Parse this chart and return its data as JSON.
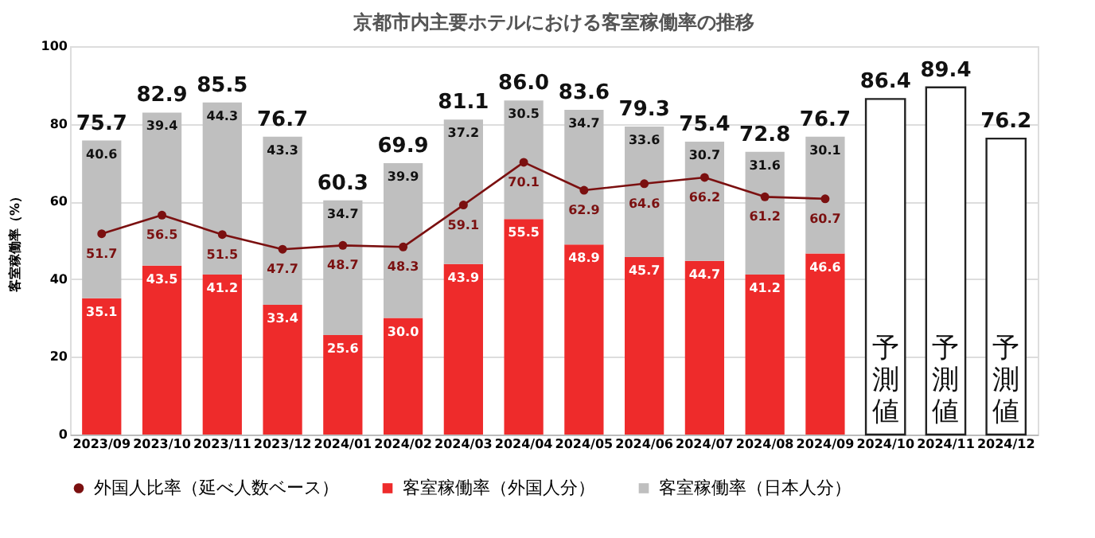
{
  "chart_data": {
    "type": "bar",
    "title": "京都市内主要ホテルにおける客室稼働率の推移",
    "ylabel": "客室稼働率（%）",
    "categories": [
      "2023/09",
      "2023/10",
      "2023/11",
      "2023/12",
      "2024/01",
      "2024/02",
      "2024/03",
      "2024/04",
      "2024/05",
      "2024/06",
      "2024/07",
      "2024/08",
      "2024/09",
      "2024/10",
      "2024/11",
      "2024/12"
    ],
    "stacked": true,
    "ylim": [
      0,
      100
    ],
    "yticks": [
      0,
      20,
      40,
      60,
      80,
      100
    ],
    "grid": "y",
    "legend": "bottom",
    "series": [
      {
        "name": "外国人比率（延べ人数ベース）",
        "type": "line",
        "marker": "circle",
        "color": "#7b1010",
        "values": [
          51.7,
          56.5,
          51.5,
          47.7,
          48.7,
          48.3,
          59.1,
          70.1,
          62.9,
          64.6,
          66.2,
          61.2,
          60.7,
          null,
          null,
          null
        ],
        "value_labels": [
          "51.7",
          "56.5",
          "51.5",
          "47.7",
          "48.7",
          "48.3",
          "59.1",
          "70.1",
          "62.9",
          "64.6",
          "66.2",
          "61.2",
          "60.7",
          null,
          null,
          null
        ]
      },
      {
        "name": "客室稼働率（外国人分）",
        "color": "#ee2b2b",
        "values": [
          35.1,
          43.5,
          41.2,
          33.4,
          25.6,
          30.0,
          43.9,
          55.5,
          48.9,
          45.7,
          44.7,
          41.2,
          46.6,
          null,
          null,
          null
        ],
        "value_labels": [
          "35.1",
          "43.5",
          "41.2",
          "33.4",
          "25.6",
          "30.0",
          "43.9",
          "55.5",
          "48.9",
          "45.7",
          "44.7",
          "41.2",
          "46.6",
          null,
          null,
          null
        ]
      },
      {
        "name": "客室稼働率（日本人分）",
        "color": "#bfbfbf",
        "values": [
          40.6,
          39.4,
          44.3,
          43.3,
          34.7,
          39.9,
          37.2,
          30.5,
          34.7,
          33.6,
          30.7,
          31.6,
          30.1,
          null,
          null,
          null
        ],
        "value_labels": [
          "40.6",
          "39.4",
          "44.3",
          "43.3",
          "34.7",
          "39.9",
          "37.2",
          "30.5",
          "34.7",
          "33.6",
          "30.7",
          "31.6",
          "30.1",
          null,
          null,
          null
        ]
      },
      {
        "color": "#ffffff",
        "values": [
          null,
          null,
          null,
          null,
          null,
          null,
          null,
          null,
          null,
          null,
          null,
          null,
          null,
          86.4,
          89.4,
          76.2
        ],
        "value_labels": [
          null,
          null,
          null,
          null,
          null,
          null,
          null,
          null,
          null,
          null,
          null,
          null,
          null,
          "86.4",
          "89.4",
          "76.2"
        ]
      }
    ],
    "totals": [
      "75.7",
      "82.9",
      "85.5",
      "76.7",
      "60.3",
      "69.9",
      "81.1",
      "86.0",
      "83.6",
      "79.3",
      "75.4",
      "72.8",
      "76.7",
      null,
      null,
      null
    ],
    "annotations": [
      "予測値",
      "予測値",
      "予測値"
    ]
  }
}
